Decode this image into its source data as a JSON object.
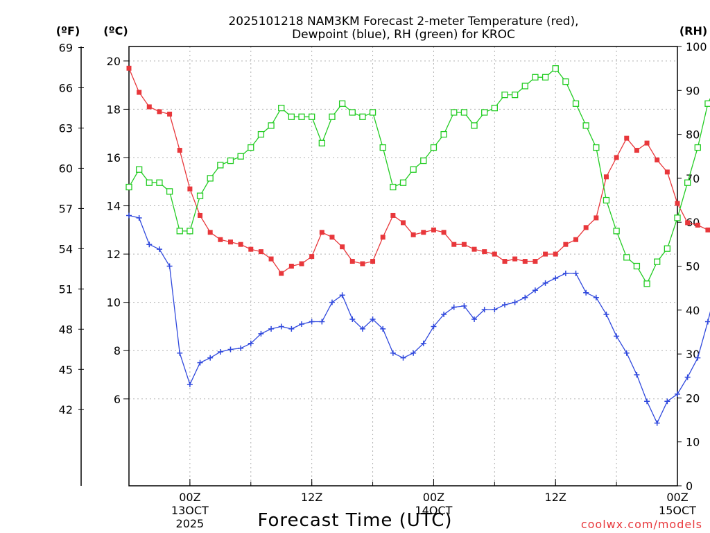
{
  "chart_data": {
    "type": "line",
    "title_line1": "2025101218 NAM3KM Forecast 2-meter Temperature (red),",
    "title_line2": "Dewpoint (blue), RH (green) for KROC",
    "xlabel": "Forecast Time (UTC)",
    "credit": "coolwx.com/models",
    "units": {
      "fahrenheit": "(ºF)",
      "celsius": "(ºC)",
      "rh": "(RH)"
    },
    "left_axis_c": {
      "ylim": [
        2.4,
        20.6
      ],
      "ticks": [
        6,
        8,
        10,
        12,
        14,
        16,
        18,
        20
      ]
    },
    "left_axis_f": {
      "ylim": [
        36.32,
        69.08
      ],
      "ticks": [
        42,
        45,
        48,
        51,
        54,
        57,
        60,
        63,
        66,
        69
      ]
    },
    "right_axis_rh": {
      "ylim": [
        0,
        100
      ],
      "ticks": [
        0,
        10,
        20,
        30,
        40,
        50,
        60,
        70,
        80,
        90,
        100
      ]
    },
    "x_hours": {
      "start": 18,
      "end": 72,
      "step": 1
    },
    "x_ticks": [
      {
        "hour": 24,
        "lines": [
          "00Z",
          "13OCT",
          "2025"
        ]
      },
      {
        "hour": 36,
        "lines": [
          "12Z"
        ]
      },
      {
        "hour": 48,
        "lines": [
          "00Z",
          "14OCT"
        ]
      },
      {
        "hour": 60,
        "lines": [
          "12Z"
        ]
      },
      {
        "hour": 72,
        "lines": [
          "00Z",
          "15OCT"
        ]
      }
    ],
    "series": [
      {
        "name": "Temperature",
        "unit": "C",
        "color": "#e8373b",
        "marker": "filled-square",
        "values": [
          19.7,
          18.7,
          18.1,
          17.9,
          17.8,
          16.3,
          14.7,
          13.6,
          12.9,
          12.6,
          12.5,
          12.4,
          12.2,
          12.1,
          11.8,
          11.2,
          11.5,
          11.6,
          11.9,
          12.9,
          12.7,
          12.3,
          11.7,
          11.6,
          11.7,
          12.7,
          13.6,
          13.3,
          12.8,
          12.9,
          13.0,
          12.9,
          12.4,
          12.4,
          12.2,
          12.1,
          12.0,
          11.7,
          11.8,
          11.7,
          11.7,
          12.0,
          12.0,
          12.4,
          12.6,
          13.1,
          13.5,
          15.2,
          16.0,
          16.8,
          16.3,
          16.6,
          15.9,
          15.4,
          14.1,
          13.3,
          13.2,
          13.0,
          13.1,
          12.6,
          12.6
        ]
      },
      {
        "name": "Dewpoint",
        "unit": "C",
        "color": "#2f48dd",
        "marker": "plus",
        "values": [
          13.6,
          13.5,
          12.4,
          12.2,
          11.5,
          7.9,
          6.6,
          7.5,
          7.7,
          7.95,
          8.05,
          8.1,
          8.3,
          8.7,
          8.9,
          9.0,
          8.9,
          9.1,
          9.2,
          9.2,
          10.0,
          10.3,
          9.3,
          8.9,
          9.3,
          8.9,
          7.9,
          7.7,
          7.9,
          8.3,
          9.0,
          9.5,
          9.8,
          9.85,
          9.3,
          9.7,
          9.7,
          9.9,
          10.0,
          10.2,
          10.5,
          10.8,
          11.0,
          11.2,
          11.2,
          10.4,
          10.2,
          9.5,
          8.6,
          7.9,
          7.0,
          5.9,
          5.0,
          5.9,
          6.2,
          6.9,
          7.7,
          9.2,
          10.9,
          11.9,
          11.2,
          11.1
        ]
      },
      {
        "name": "RH",
        "unit": "%",
        "color": "#22cc22",
        "marker": "open-square",
        "values": [
          68,
          72,
          69,
          69,
          67,
          58,
          58,
          66,
          70,
          73,
          74,
          75,
          77,
          80,
          82,
          86,
          84,
          84,
          84,
          78,
          84,
          87,
          85,
          84,
          85,
          77,
          68,
          69,
          72,
          74,
          77,
          80,
          85,
          85,
          82,
          85,
          86,
          89,
          89,
          91,
          93,
          93,
          95,
          92,
          87,
          82,
          77,
          65,
          58,
          52,
          50,
          46,
          51,
          54,
          61,
          69,
          77,
          87,
          92,
          91,
          90
        ]
      }
    ]
  }
}
